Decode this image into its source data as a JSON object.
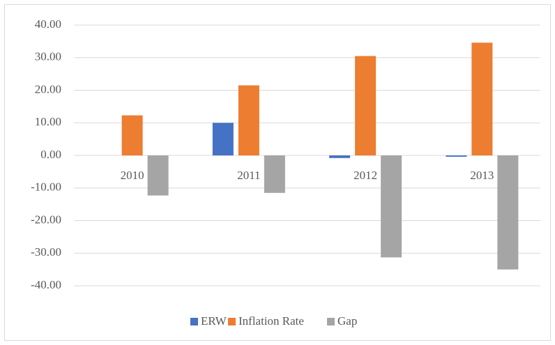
{
  "chart_data": {
    "type": "bar",
    "categories": [
      "2010",
      "2011",
      "2012",
      "2013"
    ],
    "series": [
      {
        "name": "ERW",
        "color": "#4472c4",
        "values": [
          0,
          10,
          -0.8,
          -0.4
        ]
      },
      {
        "name": "Inflation Rate",
        "color": "#ed7d31",
        "values": [
          12.3,
          21.5,
          30.5,
          34.6
        ]
      },
      {
        "name": "Gap",
        "color": "#a5a5a5",
        "values": [
          -12.3,
          -11.5,
          -31.3,
          -35.0
        ]
      }
    ],
    "ylim": [
      -40,
      40
    ],
    "yticks": [
      {
        "value": -40,
        "label": "-40.00"
      },
      {
        "value": -30,
        "label": "-30.00"
      },
      {
        "value": -20,
        "label": "-20.00"
      },
      {
        "value": -10,
        "label": "-10.00"
      },
      {
        "value": 0,
        "label": "0.00"
      },
      {
        "value": 10,
        "label": "10.00"
      },
      {
        "value": 20,
        "label": "20.00"
      },
      {
        "value": 30,
        "label": "30.00"
      },
      {
        "value": 40,
        "label": "40.00"
      }
    ],
    "grid": true,
    "legend": "bottom"
  }
}
